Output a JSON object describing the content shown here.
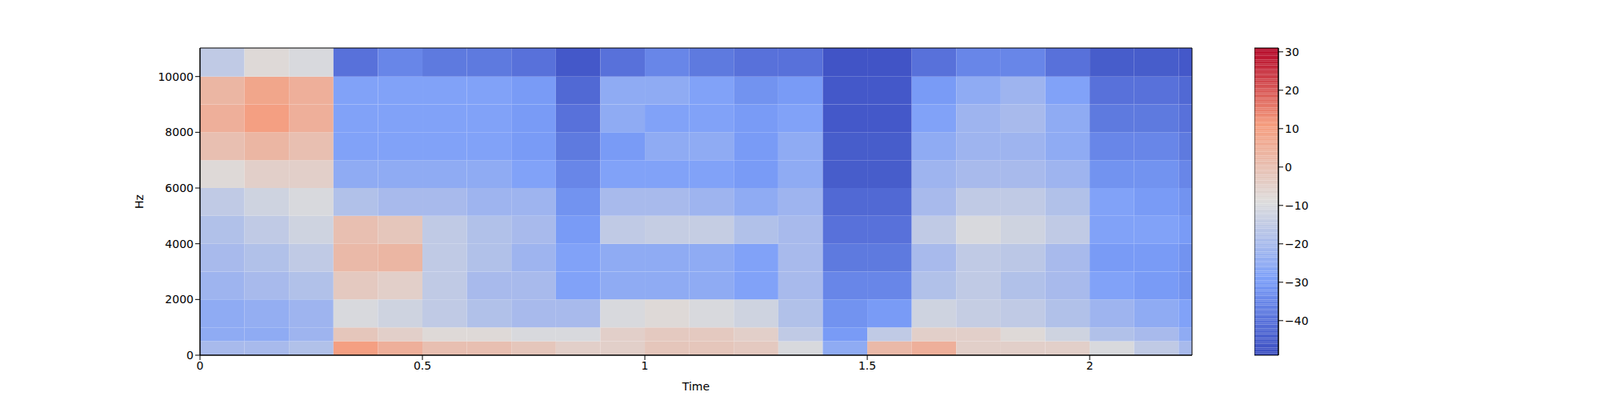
{
  "chart_data": {
    "type": "heatmap",
    "x_label": "Time",
    "y_label": "Hz",
    "x_edges": [
      0,
      0.1,
      0.2,
      0.3,
      0.4,
      0.5,
      0.6,
      0.7,
      0.8,
      0.9,
      1.0,
      1.1,
      1.2,
      1.3,
      1.4,
      1.5,
      1.6,
      1.7,
      1.8,
      1.9,
      2.0,
      2.1,
      2.2,
      2.23
    ],
    "y_edges": [
      0,
      500,
      1000,
      2000,
      3000,
      4000,
      5000,
      6000,
      7000,
      8000,
      9000,
      10000,
      11025
    ],
    "cells": [
      [
        -20,
        -20,
        -18,
        10,
        5,
        0,
        0,
        -2,
        -5,
        -5,
        -2,
        -2,
        -3,
        -10,
        -25,
        2,
        5,
        -5,
        -5,
        -5,
        -10,
        -15,
        -20
      ],
      [
        -25,
        -25,
        -22,
        -2,
        -5,
        -8,
        -8,
        -10,
        -10,
        -5,
        -3,
        -3,
        -5,
        -15,
        -30,
        -15,
        -5,
        -5,
        -8,
        -12,
        -18,
        -20,
        -25
      ],
      [
        -25,
        -24,
        -22,
        -10,
        -12,
        -15,
        -18,
        -20,
        -20,
        -10,
        -8,
        -10,
        -12,
        -18,
        -32,
        -30,
        -12,
        -14,
        -15,
        -18,
        -22,
        -25,
        -28
      ],
      [
        -22,
        -20,
        -18,
        -3,
        -5,
        -15,
        -20,
        -20,
        -28,
        -25,
        -25,
        -25,
        -28,
        -20,
        -35,
        -35,
        -18,
        -15,
        -18,
        -20,
        -28,
        -30,
        -32
      ],
      [
        -20,
        -18,
        -15,
        2,
        3,
        -15,
        -18,
        -22,
        -28,
        -25,
        -25,
        -25,
        -28,
        -20,
        -38,
        -38,
        -20,
        -15,
        -16,
        -20,
        -30,
        -30,
        -32
      ],
      [
        -18,
        -15,
        -12,
        0,
        -2,
        -15,
        -18,
        -20,
        -30,
        -15,
        -14,
        -14,
        -18,
        -20,
        -40,
        -40,
        -15,
        -10,
        -12,
        -15,
        -28,
        -28,
        -30
      ],
      [
        -15,
        -12,
        -10,
        -18,
        -20,
        -20,
        -22,
        -22,
        -32,
        -20,
        -20,
        -22,
        -25,
        -22,
        -42,
        -42,
        -20,
        -15,
        -15,
        -18,
        -28,
        -30,
        -32
      ],
      [
        -8,
        -5,
        -5,
        -25,
        -25,
        -25,
        -25,
        -28,
        -35,
        -28,
        -28,
        -28,
        -30,
        -25,
        -45,
        -45,
        -22,
        -20,
        -20,
        -22,
        -32,
        -32,
        -35
      ],
      [
        0,
        3,
        0,
        -28,
        -28,
        -28,
        -28,
        -30,
        -38,
        -30,
        -25,
        -25,
        -30,
        -25,
        -45,
        -45,
        -25,
        -22,
        -22,
        -25,
        -35,
        -35,
        -38
      ],
      [
        5,
        10,
        5,
        -28,
        -28,
        -28,
        -28,
        -30,
        -40,
        -25,
        -28,
        -28,
        -30,
        -28,
        -46,
        -46,
        -28,
        -22,
        -20,
        -25,
        -38,
        -38,
        -40
      ],
      [
        3,
        8,
        5,
        -28,
        -28,
        -28,
        -28,
        -30,
        -42,
        -25,
        -25,
        -28,
        -32,
        -30,
        -46,
        -46,
        -30,
        -25,
        -22,
        -28,
        -40,
        -40,
        -42
      ],
      [
        -15,
        -8,
        -10,
        -40,
        -35,
        -38,
        -38,
        -40,
        -46,
        -40,
        -35,
        -38,
        -40,
        -40,
        -47,
        -47,
        -40,
        -35,
        -35,
        -40,
        -45,
        -45,
        -46
      ]
    ],
    "xlim": [
      0,
      2.23
    ],
    "ylim": [
      0,
      11025
    ],
    "xticks": [
      0,
      0.5,
      1,
      1.5,
      2
    ],
    "yticks": [
      0,
      2000,
      4000,
      6000,
      8000,
      10000
    ],
    "colorbar_range": [
      -49,
      31
    ],
    "colorbar_ticks": [
      {
        "value": -40,
        "label": "−40"
      },
      {
        "value": -30,
        "label": "−30"
      },
      {
        "value": -20,
        "label": "−20"
      },
      {
        "value": -10,
        "label": "−10"
      },
      0,
      10,
      20,
      30
    ]
  }
}
